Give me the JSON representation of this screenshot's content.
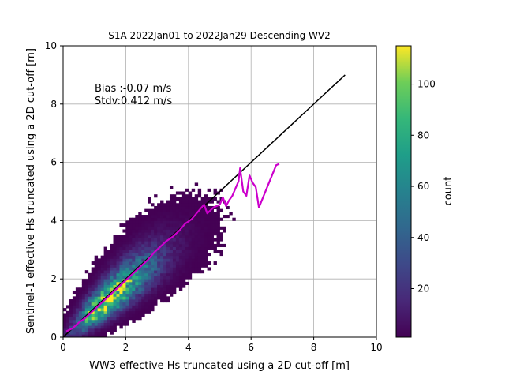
{
  "chart_data": {
    "type": "heatmap",
    "title": "S1A 2022Jan01 to 2022Jan29 Descending WV2",
    "xlabel": "WW3 effective Hs truncated using a 2D cut-off [m]",
    "ylabel": "Sentinel-1 effective Hs truncated using a 2D cut-off [m]",
    "xlim": [
      0,
      10
    ],
    "ylim": [
      0,
      10
    ],
    "x_ticks": [
      "0",
      "2",
      "4",
      "6",
      "8",
      "10"
    ],
    "y_ticks": [
      "0",
      "2",
      "4",
      "6",
      "8",
      "10"
    ],
    "grid": true,
    "annotations": [
      "Bias :-0.07 m/s",
      "Stdv:0.412 m/s"
    ],
    "colorbar": {
      "label": "count",
      "range": [
        1,
        115
      ],
      "ticks": [
        "20",
        "40",
        "60",
        "80",
        "100"
      ],
      "colormap": "viridis"
    },
    "density_peaks": [
      {
        "x": 1.25,
        "y": 1.1,
        "count": 115
      },
      {
        "x": 1.6,
        "y": 1.45,
        "count": 85
      },
      {
        "x": 2.0,
        "y": 1.85,
        "count": 45
      },
      {
        "x": 2.6,
        "y": 2.4,
        "count": 15
      },
      {
        "x": 3.2,
        "y": 3.0,
        "count": 5
      }
    ],
    "series": [
      {
        "type": "line",
        "color": "#000000",
        "x": [
          0,
          9
        ],
        "y": [
          0,
          9
        ]
      },
      {
        "type": "line",
        "color": "#cc00cc",
        "x": [
          0.1,
          0.3,
          0.5,
          0.7,
          0.9,
          1.1,
          1.3,
          1.5,
          1.7,
          1.9,
          2.1,
          2.3,
          2.5,
          2.7,
          2.9,
          3.1,
          3.3,
          3.5,
          3.7,
          3.9,
          4.1,
          4.3,
          4.5,
          4.6,
          4.8,
          5.0,
          5.1,
          5.2,
          5.3,
          5.4,
          5.5,
          5.6,
          5.65,
          5.75,
          5.85,
          5.95,
          6.05,
          6.15,
          6.25,
          6.8,
          6.9
        ],
        "y": [
          0.2,
          0.3,
          0.5,
          0.65,
          0.85,
          1.05,
          1.25,
          1.45,
          1.65,
          1.85,
          2.05,
          2.25,
          2.45,
          2.65,
          2.9,
          3.1,
          3.3,
          3.45,
          3.65,
          3.9,
          4.05,
          4.3,
          4.55,
          4.25,
          4.45,
          4.55,
          4.8,
          4.5,
          4.7,
          4.85,
          5.1,
          5.35,
          5.8,
          5.0,
          4.85,
          5.55,
          5.3,
          5.15,
          4.45,
          5.9,
          5.95
        ]
      }
    ]
  }
}
